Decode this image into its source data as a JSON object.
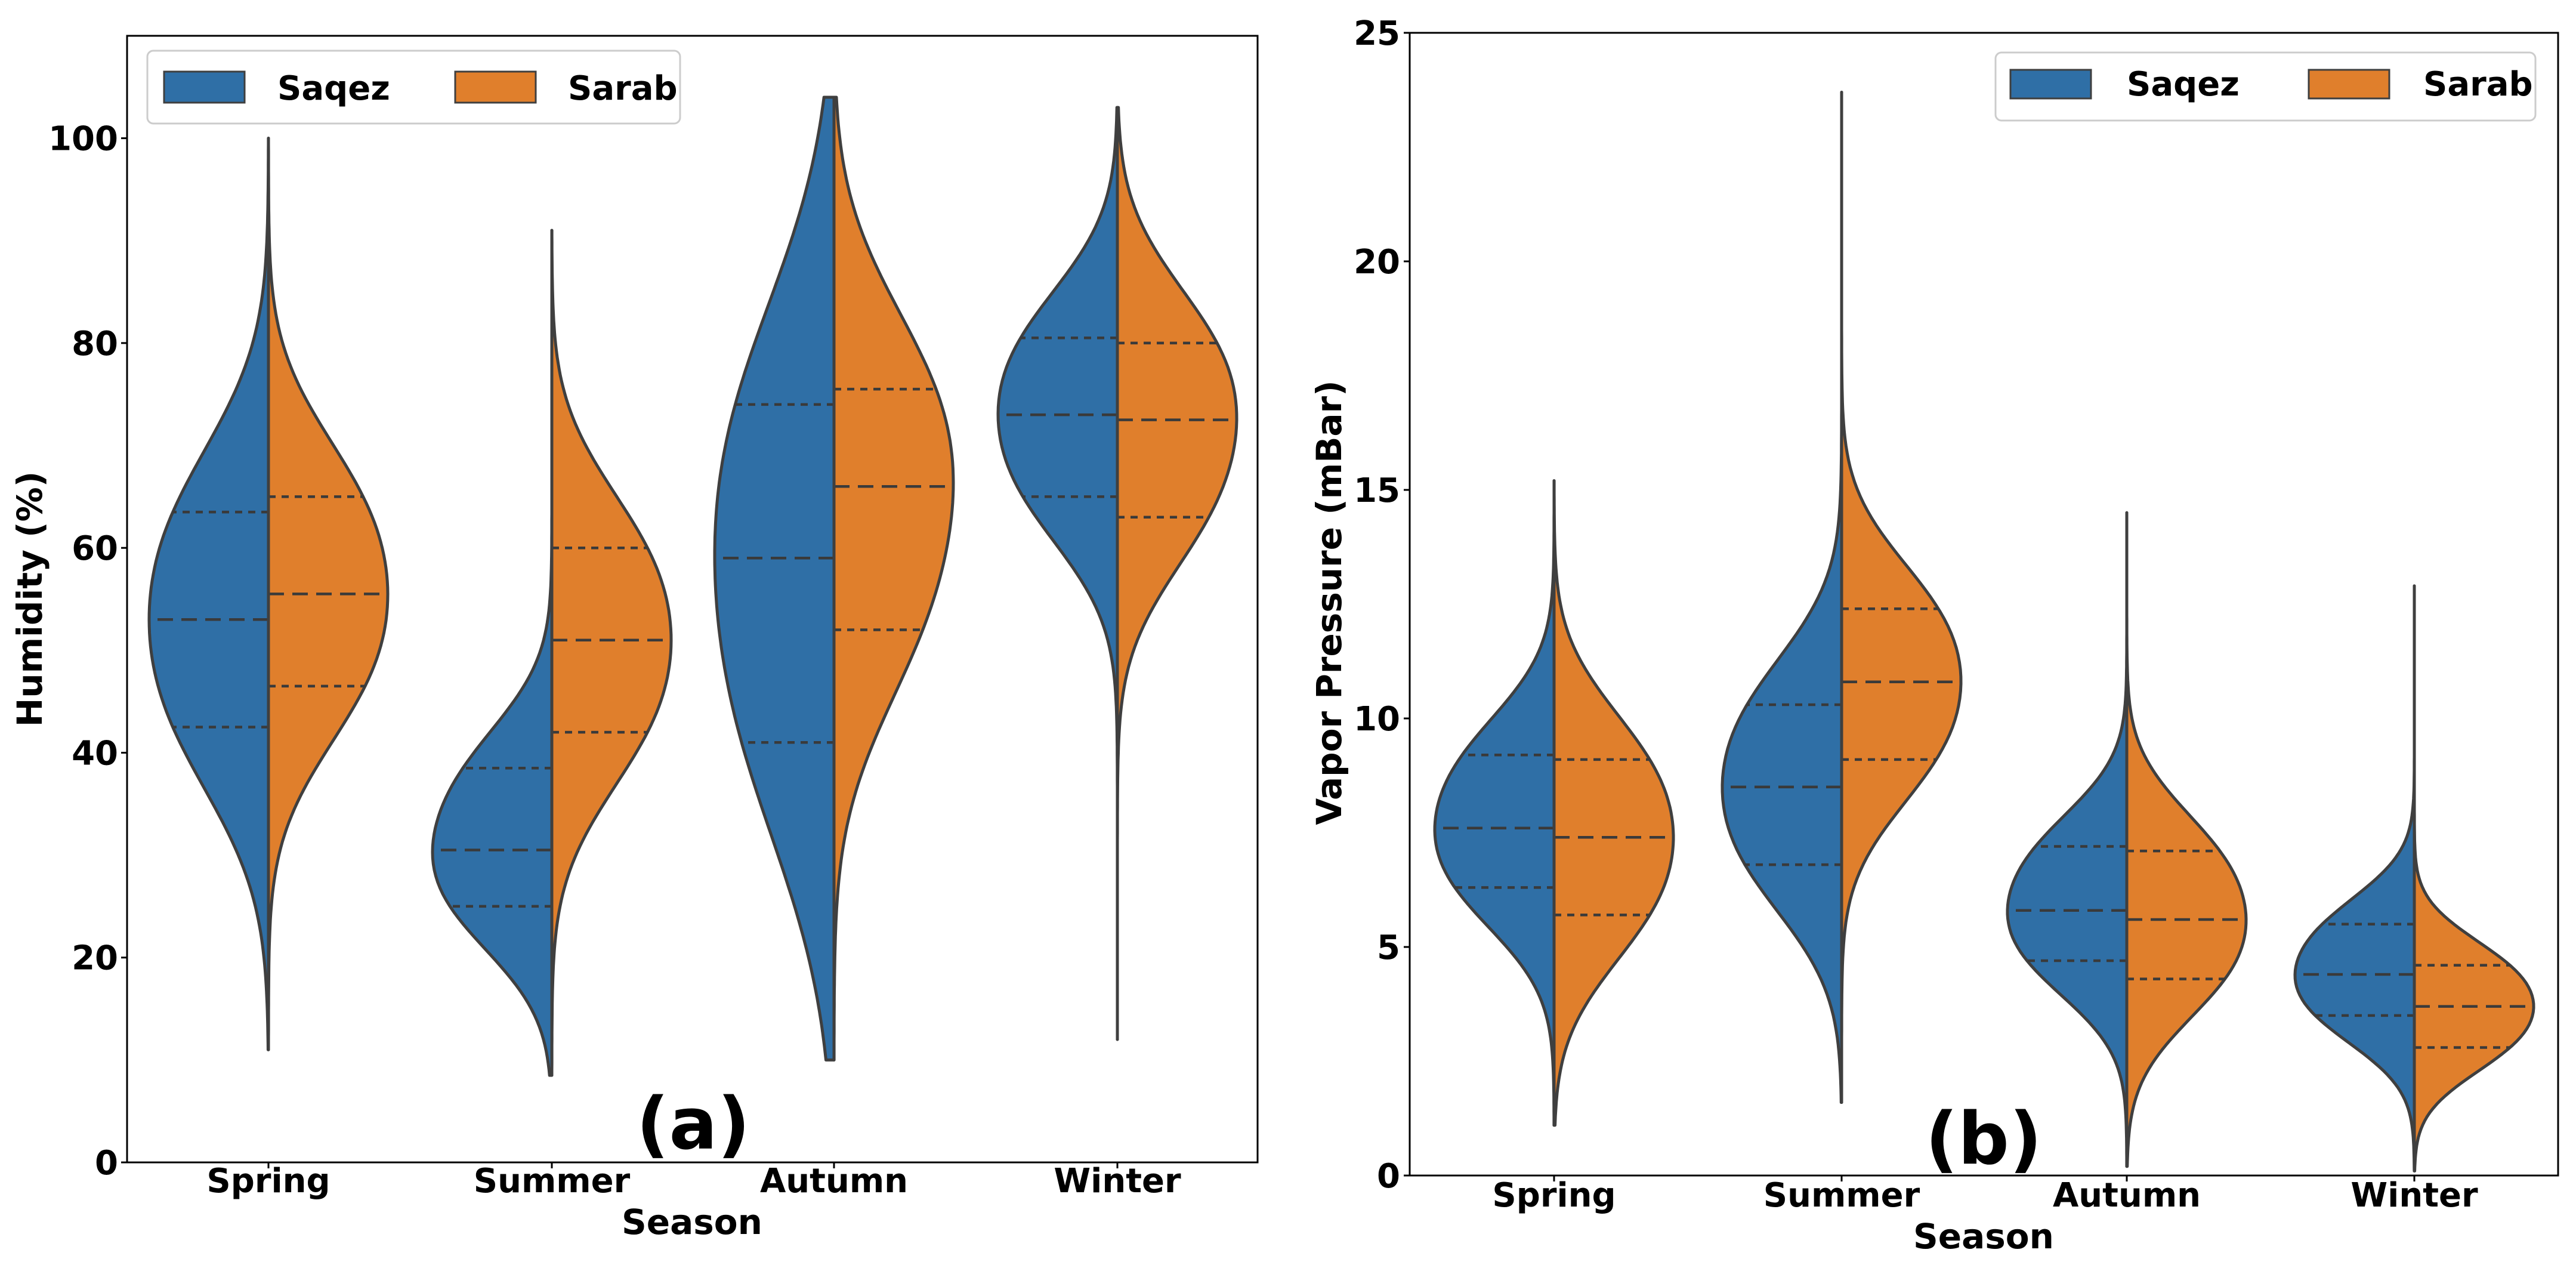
{
  "chart_data": [
    {
      "type": "violin",
      "panel_label": "(a)",
      "xlabel": "Season",
      "ylabel": "Humidity (%)",
      "ylim": [
        0,
        110
      ],
      "yticks": [
        0,
        20,
        40,
        60,
        80,
        100
      ],
      "categories": [
        "Spring",
        "Summer",
        "Autumn",
        "Winter"
      ],
      "legend": {
        "placement": "top-left",
        "entries": [
          "Saqez",
          "Sarab"
        ]
      },
      "series": [
        {
          "name": "Saqez",
          "color": "#2f6fa6",
          "stats": [
            {
              "min": 11,
              "max": 100,
              "q1": 42.5,
              "median": 53,
              "q3": 63.5
            },
            {
              "min": 8.5,
              "max": 91,
              "q1": 25,
              "median": 30.5,
              "q3": 38.5
            },
            {
              "min": 10,
              "max": 104,
              "q1": 41,
              "median": 59,
              "q3": 74
            },
            {
              "min": 12,
              "max": 103,
              "q1": 65,
              "median": 73,
              "q3": 80.5
            }
          ]
        },
        {
          "name": "Sarab",
          "color": "#e07f2c",
          "stats": [
            {
              "min": 11,
              "max": 100,
              "q1": 46.5,
              "median": 55.5,
              "q3": 65
            },
            {
              "min": 8.5,
              "max": 91,
              "q1": 42,
              "median": 51,
              "q3": 60
            },
            {
              "min": 10,
              "max": 104,
              "q1": 52,
              "median": 66,
              "q3": 75.5
            },
            {
              "min": 12,
              "max": 103,
              "q1": 63,
              "median": 72.5,
              "q3": 80
            }
          ]
        }
      ]
    },
    {
      "type": "violin",
      "panel_label": "(b)",
      "xlabel": "Season",
      "ylabel": "Vapor Pressure (mBar)",
      "ylim": [
        0,
        25
      ],
      "yticks": [
        0,
        5,
        10,
        15,
        20,
        25
      ],
      "categories": [
        "Spring",
        "Summer",
        "Autumn",
        "Winter"
      ],
      "legend": {
        "placement": "top-right",
        "entries": [
          "Saqez",
          "Sarab"
        ]
      },
      "series": [
        {
          "name": "Saqez",
          "color": "#2f6fa6",
          "stats": [
            {
              "min": 1.1,
              "max": 15.2,
              "q1": 6.3,
              "median": 7.6,
              "q3": 9.2
            },
            {
              "min": 1.6,
              "max": 23.7,
              "q1": 6.8,
              "median": 8.5,
              "q3": 10.3
            },
            {
              "min": 0.2,
              "max": 14.5,
              "q1": 4.7,
              "median": 5.8,
              "q3": 7.2
            },
            {
              "min": 0.1,
              "max": 12.9,
              "q1": 3.5,
              "median": 4.4,
              "q3": 5.5
            }
          ]
        },
        {
          "name": "Sarab",
          "color": "#e07f2c",
          "stats": [
            {
              "min": 1.1,
              "max": 15.2,
              "q1": 5.7,
              "median": 7.4,
              "q3": 9.1
            },
            {
              "min": 1.6,
              "max": 23.7,
              "q1": 9.1,
              "median": 10.8,
              "q3": 12.4
            },
            {
              "min": 0.2,
              "max": 14.5,
              "q1": 4.3,
              "median": 5.6,
              "q3": 7.1
            },
            {
              "min": 0.1,
              "max": 12.9,
              "q1": 2.8,
              "median": 3.7,
              "q3": 4.6
            }
          ]
        }
      ]
    }
  ]
}
